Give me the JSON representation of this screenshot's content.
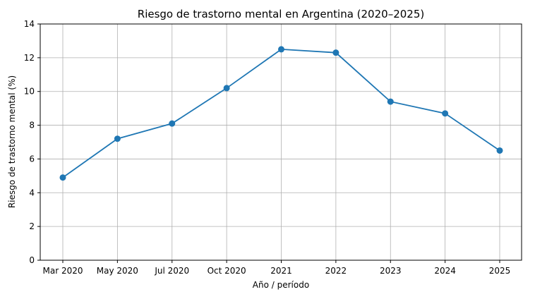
{
  "chart_data": {
    "type": "line",
    "title": "Riesgo de trastorno mental en Argentina (2020–2025)",
    "xlabel": "Año / período",
    "ylabel": "Riesgo de trastorno mental (%)",
    "categories": [
      "Mar 2020",
      "May 2020",
      "Jul 2020",
      "Oct 2020",
      "2021",
      "2022",
      "2023",
      "2024",
      "2025"
    ],
    "series": [
      {
        "values": [
          4.9,
          7.2,
          8.1,
          10.2,
          12.5,
          12.3,
          9.4,
          8.7,
          6.5
        ]
      }
    ],
    "ylim": [
      0,
      14
    ],
    "yticks": [
      "0",
      "2",
      "4",
      "6",
      "8",
      "10",
      "12",
      "14"
    ],
    "grid": true,
    "colors": {
      "series": "#1f77b4"
    }
  }
}
